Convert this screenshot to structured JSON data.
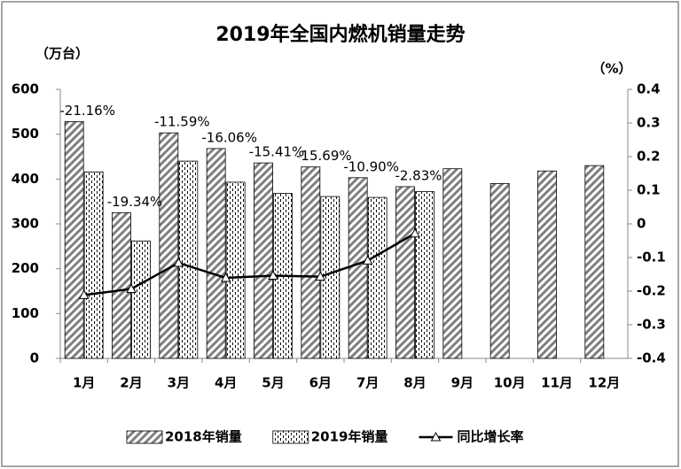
{
  "chart_data": {
    "type": "bar-line",
    "title": "2019年全国内燃机销量走势",
    "y_label": "（万台）",
    "y2_label": "（%）",
    "categories": [
      "1月",
      "2月",
      "3月",
      "4月",
      "5月",
      "6月",
      "7月",
      "8月",
      "9月",
      "10月",
      "11月",
      "12月"
    ],
    "series": [
      {
        "name": "2018年销量",
        "color": "#7f7f7f",
        "pattern": "hatch",
        "values": [
          528,
          325,
          503,
          468,
          436,
          427,
          403,
          383,
          423,
          390,
          418,
          430
        ]
      },
      {
        "name": "2019年销量",
        "color": "#000000",
        "pattern": "dash",
        "values": [
          416,
          262,
          440,
          393,
          368,
          361,
          359,
          372,
          null,
          null,
          null,
          null
        ]
      },
      {
        "name": "同比增长率",
        "type": "line",
        "axis": "y2",
        "color": "#000000",
        "values": [
          -0.2116,
          -0.1934,
          -0.1159,
          -0.1606,
          -0.1541,
          -0.1569,
          -0.109,
          -0.0283,
          null,
          null,
          null,
          null
        ],
        "value_labels": [
          "-21.16%",
          "-19.34%",
          "-11.59%",
          "-16.06%",
          "-15.41%",
          "-15.69%",
          "-10.90%",
          "-2.83%",
          null,
          null,
          null,
          null
        ]
      }
    ],
    "ylim": [
      0,
      600
    ],
    "yticks": [
      0,
      100,
      200,
      300,
      400,
      500,
      600
    ],
    "y2lim": [
      -0.4,
      0.4
    ],
    "y2ticks": [
      -0.4,
      -0.3,
      -0.2,
      -0.1,
      0,
      0.1,
      0.2,
      0.3,
      0.4
    ],
    "grid": false,
    "legend": "bottom"
  }
}
